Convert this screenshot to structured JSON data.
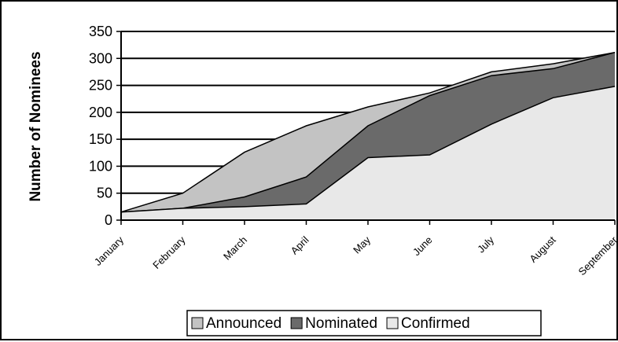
{
  "chart_data": {
    "type": "area",
    "categories": [
      "January",
      "February",
      "March",
      "April",
      "May",
      "June",
      "July",
      "August",
      "September"
    ],
    "series": [
      {
        "name": "Confirmed",
        "values": [
          15,
          22,
          25,
          30,
          116,
          121,
          178,
          227,
          248
        ],
        "color": "#e8e8e8"
      },
      {
        "name": "Nominated",
        "values": [
          15,
          22,
          43,
          80,
          175,
          231,
          268,
          281,
          311
        ],
        "color": "#6a6a6a"
      },
      {
        "name": "Announced",
        "values": [
          15,
          50,
          126,
          175,
          210,
          236,
          275,
          290,
          311
        ],
        "color": "#c3c3c3"
      }
    ],
    "xlabel": "",
    "ylabel": "Number of Nominees",
    "ylim": [
      0,
      350
    ],
    "yticks": [
      "0",
      "50",
      "100",
      "150",
      "200",
      "250",
      "300",
      "350"
    ],
    "grid": true,
    "legend": {
      "placement": "bottom",
      "entries": [
        "Announced",
        "Nominated",
        "Confirmed"
      ]
    }
  }
}
